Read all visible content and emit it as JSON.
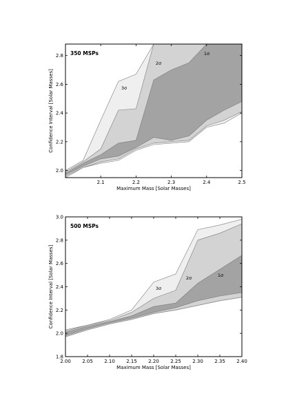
{
  "chart_data": [
    {
      "type": "area",
      "title": "350 MSPs",
      "xlabel": "Maximum Mass [Solar Masses]",
      "ylabel": "Confidence Interval [Solar Masses]",
      "xlim": [
        2.0,
        2.5
      ],
      "ylim": [
        1.95,
        2.88
      ],
      "x_ticks": [
        "2.1",
        "2.2",
        "2.3",
        "2.4",
        "2.5"
      ],
      "y_ticks": [
        "2.0",
        "2.2",
        "2.4",
        "2.6",
        "2.8"
      ],
      "x": [
        2.0,
        2.05,
        2.1,
        2.15,
        2.2,
        2.25,
        2.3,
        2.35,
        2.4,
        2.45,
        2.5
      ],
      "series": [
        {
          "name": "3σ",
          "fill": "#efefef",
          "upper": [
            2.0,
            2.07,
            2.35,
            2.62,
            2.67,
            2.88,
            2.88,
            2.88,
            2.88,
            2.88,
            2.88
          ],
          "lower": [
            1.95,
            2.02,
            2.05,
            2.07,
            2.14,
            2.18,
            2.19,
            2.2,
            2.3,
            2.33,
            2.4
          ]
        },
        {
          "name": "2σ",
          "fill": "#d3d3d3",
          "upper": [
            1.99,
            2.06,
            2.15,
            2.42,
            2.43,
            2.88,
            2.88,
            2.88,
            2.88,
            2.88,
            2.88
          ],
          "lower": [
            1.96,
            2.02,
            2.06,
            2.08,
            2.15,
            2.19,
            2.2,
            2.21,
            2.31,
            2.35,
            2.41
          ]
        },
        {
          "name": "1σ",
          "fill": "#a3a3a3",
          "upper": [
            1.98,
            2.05,
            2.11,
            2.19,
            2.21,
            2.63,
            2.7,
            2.75,
            2.88,
            2.88,
            2.88
          ],
          "lower": [
            1.97,
            2.03,
            2.08,
            2.1,
            2.16,
            2.23,
            2.21,
            2.24,
            2.35,
            2.42,
            2.48
          ]
        }
      ]
    },
    {
      "type": "area",
      "title": "500 MSPs",
      "xlabel": "Maximum Mass [Solar Masses]",
      "ylabel": "Confidence Interval [Solar Masses]",
      "xlim": [
        2.0,
        2.4
      ],
      "ylim": [
        1.8,
        3.0
      ],
      "x_ticks": [
        "2.00",
        "2.05",
        "2.10",
        "2.15",
        "2.20",
        "2.25",
        "2.30",
        "2.35",
        "2.40"
      ],
      "y_ticks": [
        "1.8",
        "2.0",
        "2.2",
        "2.4",
        "2.6",
        "2.8",
        "3.0"
      ],
      "x": [
        2.0,
        2.05,
        2.1,
        2.15,
        2.2,
        2.25,
        2.3,
        2.35,
        2.4
      ],
      "series": [
        {
          "name": "3σ",
          "fill": "#efefef",
          "upper": [
            2.03,
            2.07,
            2.12,
            2.2,
            2.44,
            2.51,
            2.89,
            2.93,
            2.98
          ],
          "lower": [
            1.97,
            2.03,
            2.08,
            2.12,
            2.17,
            2.2,
            2.24,
            2.28,
            2.31
          ]
        },
        {
          "name": "2σ",
          "fill": "#d3d3d3",
          "upper": [
            2.02,
            2.07,
            2.11,
            2.18,
            2.3,
            2.37,
            2.8,
            2.86,
            2.94
          ]
        },
        {
          "name": "1σ",
          "fill": "#a3a3a3",
          "upper": [
            2.01,
            2.06,
            2.1,
            2.15,
            2.23,
            2.26,
            2.43,
            2.55,
            2.67
          ],
          "lower": [
            1.98,
            2.04,
            2.09,
            2.13,
            2.18,
            2.22,
            2.28,
            2.32,
            2.35
          ]
        }
      ]
    }
  ]
}
